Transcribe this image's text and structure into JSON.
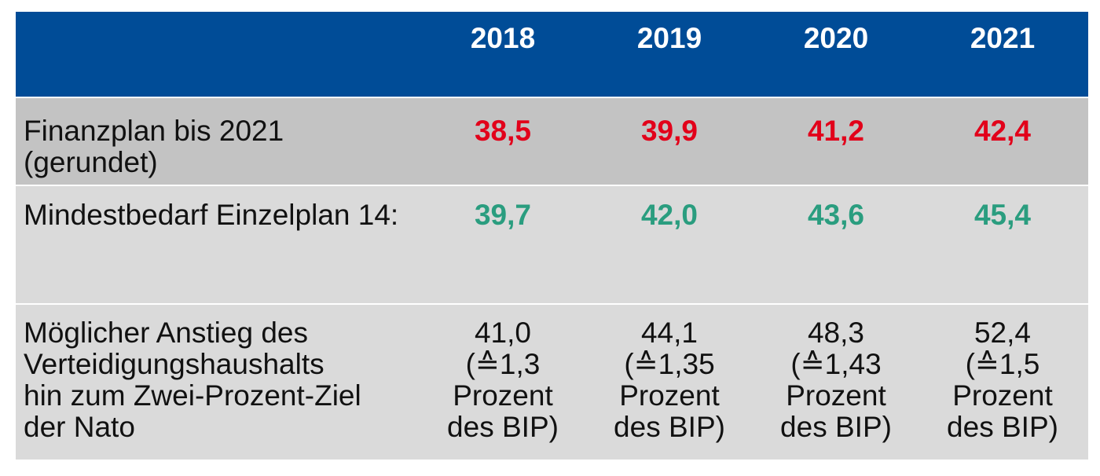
{
  "chart_data": {
    "type": "table",
    "columns": [
      "2018",
      "2019",
      "2020",
      "2021"
    ],
    "rows": [
      {
        "label": "Finanzplan bis 2021\n(gerundet)",
        "values": [
          "38,5",
          "39,9",
          "41,2",
          "42,4"
        ],
        "color": "#e2001a"
      },
      {
        "label": "Mindestbedarf Einzelplan 14:",
        "values": [
          "39,7",
          "42,0",
          "43,6",
          "45,4"
        ],
        "color": "#2a9d7f"
      },
      {
        "label": "Möglicher Anstieg des\nVerteidigungshaushalts\nhin zum Zwei-Prozent-Ziel\nder Nato",
        "values": [
          "41,0\n(≙1,3\nProzent\ndes BIP)",
          "44,1\n(≙1,35\nProzent\ndes BIP)",
          "48,3\n(≙1,43\nProzent\ndes BIP)",
          "52,4\n(≙1,5\nProzent\ndes BIP)"
        ],
        "color": "#111111"
      }
    ],
    "header_color": "#004c97"
  }
}
